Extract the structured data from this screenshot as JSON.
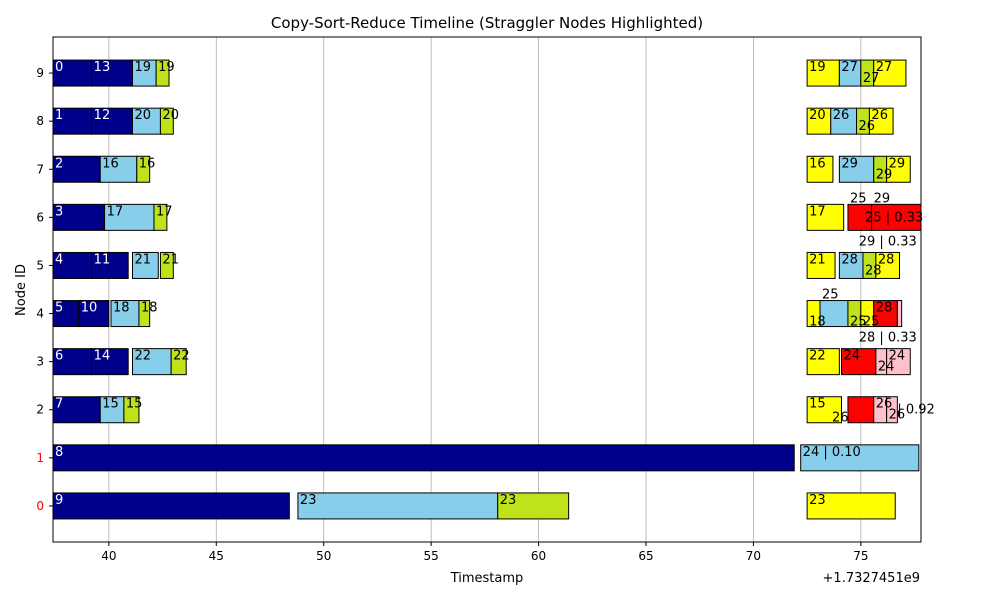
{
  "chart_data": {
    "type": "timeline",
    "title": "Copy-Sort-Reduce Timeline (Straggler Nodes Highlighted)",
    "xlabel": "Timestamp",
    "ylabel": "Node ID",
    "x_offset_label": "+1.7327451e9",
    "xlim": [
      37.4,
      77.8
    ],
    "ylim": [
      -0.75,
      9.75
    ],
    "x_ticks": [
      40,
      45,
      50,
      55,
      60,
      65,
      70,
      75
    ],
    "y_ticks": [
      0,
      1,
      2,
      3,
      4,
      5,
      6,
      7,
      8,
      9
    ],
    "straggler_nodes": [
      0,
      1
    ],
    "grid": "x",
    "colors": {
      "copy": "#00008B",
      "sort": "#87CEEB",
      "reduce": "#BFE31A",
      "yellow": "#FFFF00",
      "straggler": "#FF0000",
      "pink": "#FFC0CB",
      "straggler_tick": "#FF0000",
      "bar_edge": "#000000"
    },
    "bars": [
      {
        "node": 9,
        "start": 37.4,
        "end": 39.2,
        "color": "copy",
        "label": "0"
      },
      {
        "node": 9,
        "start": 39.2,
        "end": 41.1,
        "color": "copy",
        "label": "13"
      },
      {
        "node": 9,
        "start": 41.1,
        "end": 42.2,
        "color": "sort",
        "label": "19"
      },
      {
        "node": 9,
        "start": 42.2,
        "end": 42.8,
        "color": "reduce",
        "label": "19"
      },
      {
        "node": 9,
        "start": 72.5,
        "end": 74.0,
        "color": "yellow",
        "label": "19"
      },
      {
        "node": 9,
        "start": 74.0,
        "end": 75.0,
        "color": "sort",
        "label": "27"
      },
      {
        "node": 9,
        "start": 75.0,
        "end": 75.6,
        "color": "reduce",
        "label": "27",
        "label_pos": "below"
      },
      {
        "node": 9,
        "start": 75.6,
        "end": 77.1,
        "color": "yellow",
        "label": "27"
      },
      {
        "node": 8,
        "start": 37.4,
        "end": 39.2,
        "color": "copy",
        "label": "1"
      },
      {
        "node": 8,
        "start": 39.2,
        "end": 41.1,
        "color": "copy",
        "label": "12"
      },
      {
        "node": 8,
        "start": 41.1,
        "end": 42.4,
        "color": "sort",
        "label": "20"
      },
      {
        "node": 8,
        "start": 42.4,
        "end": 43.0,
        "color": "reduce",
        "label": "20"
      },
      {
        "node": 8,
        "start": 72.5,
        "end": 73.6,
        "color": "yellow",
        "label": "20"
      },
      {
        "node": 8,
        "start": 73.6,
        "end": 74.8,
        "color": "sort",
        "label": "26"
      },
      {
        "node": 8,
        "start": 74.8,
        "end": 75.4,
        "color": "reduce",
        "label": "26",
        "label_pos": "below"
      },
      {
        "node": 8,
        "start": 75.4,
        "end": 76.5,
        "color": "yellow",
        "label": "26"
      },
      {
        "node": 7,
        "start": 37.4,
        "end": 39.6,
        "color": "copy",
        "label": "2"
      },
      {
        "node": 7,
        "start": 39.6,
        "end": 41.3,
        "color": "sort",
        "label": "16"
      },
      {
        "node": 7,
        "start": 41.3,
        "end": 41.9,
        "color": "reduce",
        "label": "16"
      },
      {
        "node": 7,
        "start": 72.5,
        "end": 73.7,
        "color": "yellow",
        "label": "16"
      },
      {
        "node": 7,
        "start": 74.0,
        "end": 75.6,
        "color": "sort",
        "label": "29"
      },
      {
        "node": 7,
        "start": 75.6,
        "end": 76.2,
        "color": "reduce",
        "label": "29",
        "label_pos": "below"
      },
      {
        "node": 7,
        "start": 76.2,
        "end": 77.3,
        "color": "yellow",
        "label": "29"
      },
      {
        "node": 6,
        "start": 37.4,
        "end": 39.8,
        "color": "copy",
        "label": "3"
      },
      {
        "node": 6,
        "start": 39.8,
        "end": 42.1,
        "color": "sort",
        "label": "17"
      },
      {
        "node": 6,
        "start": 42.1,
        "end": 42.7,
        "color": "reduce",
        "label": "17"
      },
      {
        "node": 6,
        "start": 72.5,
        "end": 74.2,
        "color": "yellow",
        "label": "17"
      },
      {
        "node": 6,
        "start": 74.4,
        "end": 75.5,
        "color": "straggler",
        "label": "25",
        "label_pos": "above"
      },
      {
        "node": 6,
        "start": 75.5,
        "end": 77.8,
        "color": "straggler",
        "label": "29",
        "label_pos": "above"
      },
      {
        "node": 5,
        "start": 37.4,
        "end": 39.2,
        "color": "copy",
        "label": "4"
      },
      {
        "node": 5,
        "start": 39.2,
        "end": 40.9,
        "color": "copy",
        "label": "11"
      },
      {
        "node": 5,
        "start": 41.1,
        "end": 42.3,
        "color": "sort",
        "label": "21"
      },
      {
        "node": 5,
        "start": 42.4,
        "end": 43.0,
        "color": "reduce",
        "label": "21"
      },
      {
        "node": 5,
        "start": 72.5,
        "end": 73.8,
        "color": "yellow",
        "label": "21"
      },
      {
        "node": 5,
        "start": 74.0,
        "end": 75.1,
        "color": "sort",
        "label": "28"
      },
      {
        "node": 5,
        "start": 75.1,
        "end": 75.7,
        "color": "reduce",
        "label": "28",
        "label_pos": "below"
      },
      {
        "node": 5,
        "start": 75.7,
        "end": 76.8,
        "color": "yellow",
        "label": "28"
      },
      {
        "node": 4,
        "start": 37.4,
        "end": 38.6,
        "color": "copy",
        "label": "5"
      },
      {
        "node": 4,
        "start": 38.6,
        "end": 40.0,
        "color": "copy",
        "label": "10"
      },
      {
        "node": 4,
        "start": 40.1,
        "end": 41.4,
        "color": "sort",
        "label": "18"
      },
      {
        "node": 4,
        "start": 41.4,
        "end": 41.9,
        "color": "reduce",
        "label": "18"
      },
      {
        "node": 4,
        "start": 72.5,
        "end": 73.1,
        "color": "yellow",
        "label": "18",
        "label_pos": "inside-low"
      },
      {
        "node": 4,
        "start": 73.1,
        "end": 74.4,
        "color": "sort",
        "label": "25",
        "label_pos": "above"
      },
      {
        "node": 4,
        "start": 74.4,
        "end": 75.0,
        "color": "reduce",
        "label": "25",
        "label_pos": "inside-low"
      },
      {
        "node": 4,
        "start": 75.0,
        "end": 75.6,
        "color": "yellow",
        "label": "25",
        "label_pos": "inside-low"
      },
      {
        "node": 4,
        "start": 75.6,
        "end": 76.7,
        "color": "straggler",
        "label": "28"
      },
      {
        "node": 4,
        "start": 76.7,
        "end": 76.9,
        "color": "pink",
        "label": ""
      },
      {
        "node": 3,
        "start": 37.4,
        "end": 39.2,
        "color": "copy",
        "label": "6"
      },
      {
        "node": 3,
        "start": 39.2,
        "end": 40.9,
        "color": "copy",
        "label": "14"
      },
      {
        "node": 3,
        "start": 41.1,
        "end": 42.9,
        "color": "sort",
        "label": "22"
      },
      {
        "node": 3,
        "start": 42.9,
        "end": 43.6,
        "color": "reduce",
        "label": "22"
      },
      {
        "node": 3,
        "start": 72.5,
        "end": 74.0,
        "color": "yellow",
        "label": "22"
      },
      {
        "node": 3,
        "start": 74.1,
        "end": 75.7,
        "color": "straggler",
        "label": "24"
      },
      {
        "node": 3,
        "start": 75.7,
        "end": 76.2,
        "color": "pink",
        "label": "24",
        "label_pos": "below"
      },
      {
        "node": 3,
        "start": 76.2,
        "end": 77.3,
        "color": "pink",
        "label": "24"
      },
      {
        "node": 2,
        "start": 37.4,
        "end": 39.6,
        "color": "copy",
        "label": "7"
      },
      {
        "node": 2,
        "start": 39.6,
        "end": 40.7,
        "color": "sort",
        "label": "15"
      },
      {
        "node": 2,
        "start": 40.7,
        "end": 41.4,
        "color": "reduce",
        "label": "15"
      },
      {
        "node": 2,
        "start": 72.5,
        "end": 74.1,
        "color": "yellow",
        "label": "15"
      },
      {
        "node": 2,
        "start": 74.4,
        "end": 75.6,
        "color": "straggler",
        "label": "26",
        "label_pos": "below-left"
      },
      {
        "node": 2,
        "start": 75.6,
        "end": 76.2,
        "color": "pink",
        "label": "26"
      },
      {
        "node": 2,
        "start": 76.2,
        "end": 76.7,
        "color": "pink",
        "label": "26",
        "label_pos": "below"
      },
      {
        "node": 1,
        "start": 37.4,
        "end": 71.9,
        "color": "copy",
        "label": "8"
      },
      {
        "node": 1,
        "start": 72.2,
        "end": 77.7,
        "color": "sort",
        "label": "24 | 0.10"
      },
      {
        "node": 0,
        "start": 37.4,
        "end": 48.4,
        "color": "copy",
        "label": "9"
      },
      {
        "node": 0,
        "start": 48.8,
        "end": 58.1,
        "color": "sort",
        "label": "23"
      },
      {
        "node": 0,
        "start": 58.1,
        "end": 61.4,
        "color": "reduce",
        "label": "23"
      },
      {
        "node": 0,
        "start": 72.5,
        "end": 76.6,
        "color": "yellow",
        "label": "23"
      }
    ],
    "annotations": [
      {
        "text": "25 | 0.33",
        "x": 75.2,
        "node": 6,
        "pos": "inside"
      },
      {
        "text": "29 | 0.33",
        "x": 74.9,
        "node": 6,
        "pos": "under"
      },
      {
        "text": "28 | 0.33",
        "x": 74.9,
        "node": 4,
        "pos": "under"
      },
      {
        "text": "| 0.92",
        "x": 76.7,
        "node": 2,
        "pos": "inside"
      }
    ]
  }
}
